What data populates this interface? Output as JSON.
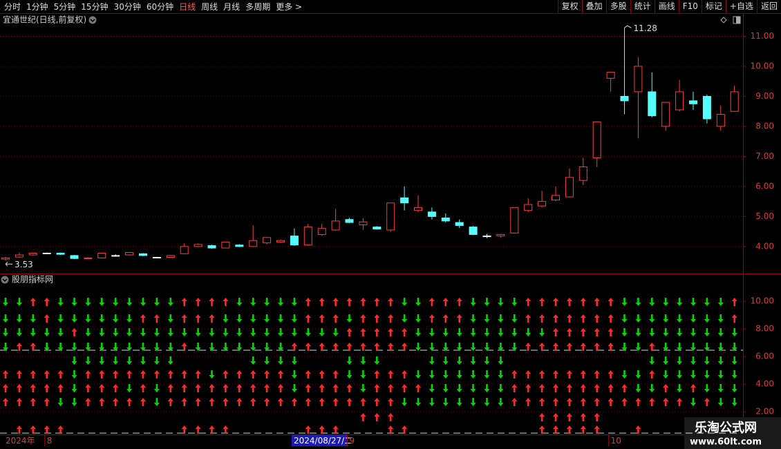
{
  "toolbar": {
    "periods": [
      "分时",
      "1分钟",
      "5分钟",
      "15分钟",
      "30分钟",
      "60分钟",
      "日线",
      "周线",
      "月线",
      "多周期",
      "更多 >"
    ],
    "tools": [
      "复权",
      "叠加",
      "多股",
      "统计",
      "画线",
      "F10",
      "标记",
      "+自选",
      "返回"
    ]
  },
  "cursor_label": "2024/08/27/二",
  "watermark": {
    "title": "乐淘公式网",
    "url": "www.60lt.com"
  },
  "chart_data": [
    {
      "type": "candlestick",
      "title": "宜通世纪(日线,前复权)",
      "categories": [
        "2024年",
        null,
        null,
        "8",
        null,
        null,
        null,
        null,
        null,
        null,
        null,
        null,
        null,
        null,
        null,
        null,
        null,
        null,
        null,
        null,
        null,
        null,
        null,
        null,
        null,
        "9",
        null,
        null,
        null,
        null,
        null,
        null,
        null,
        null,
        null,
        null,
        null,
        null,
        null,
        null,
        null,
        null,
        null,
        null,
        "10",
        null,
        null,
        null,
        null,
        null,
        null,
        null,
        null,
        null
      ],
      "open": [
        3.58,
        3.65,
        3.72,
        3.78,
        3.78,
        3.7,
        3.6,
        3.62,
        3.7,
        3.72,
        3.76,
        3.64,
        3.64,
        3.76,
        4.0,
        4.03,
        3.95,
        4.05,
        4.0,
        4.12,
        4.15,
        4.35,
        4.05,
        4.4,
        4.55,
        4.9,
        4.72,
        4.65,
        4.55,
        5.62,
        5.2,
        5.15,
        4.95,
        4.8,
        4.65,
        4.35,
        4.35,
        4.45,
        5.2,
        5.35,
        5.55,
        5.65,
        6.2,
        6.95,
        9.6,
        9.0,
        9.15,
        9.15,
        8.0,
        8.55,
        8.85,
        9.0,
        8.0,
        8.5
      ],
      "high": [
        3.65,
        3.8,
        3.8,
        3.8,
        3.8,
        3.72,
        3.64,
        3.8,
        3.74,
        3.82,
        3.78,
        3.66,
        3.72,
        4.1,
        4.1,
        4.06,
        4.15,
        4.08,
        4.7,
        4.32,
        4.22,
        4.6,
        4.75,
        4.75,
        5.25,
        4.95,
        4.95,
        4.68,
        5.45,
        6.0,
        5.7,
        5.3,
        5.1,
        4.9,
        4.68,
        4.42,
        4.42,
        5.3,
        5.6,
        5.85,
        6.0,
        6.6,
        6.95,
        8.15,
        9.8,
        11.28,
        10.3,
        9.8,
        8.8,
        9.55,
        9.15,
        9.05,
        8.7,
        9.35
      ],
      "low": [
        3.53,
        3.63,
        3.7,
        3.76,
        3.72,
        3.58,
        3.58,
        3.6,
        3.66,
        3.7,
        3.68,
        3.62,
        3.62,
        3.74,
        3.98,
        3.93,
        3.94,
        3.98,
        3.98,
        4.08,
        4.12,
        4.02,
        4.02,
        4.35,
        4.52,
        4.78,
        4.55,
        4.56,
        4.48,
        5.2,
        5.15,
        4.9,
        4.8,
        4.62,
        4.38,
        4.28,
        4.3,
        4.45,
        5.15,
        5.3,
        5.5,
        5.62,
        6.05,
        6.65,
        9.15,
        8.4,
        7.6,
        8.3,
        7.85,
        8.5,
        8.55,
        8.1,
        7.85,
        8.5
      ],
      "close": [
        3.62,
        3.72,
        3.78,
        3.78,
        3.74,
        3.6,
        3.62,
        3.78,
        3.7,
        3.8,
        3.7,
        3.64,
        3.7,
        4.0,
        4.07,
        3.95,
        4.15,
        4.0,
        4.2,
        4.3,
        4.2,
        4.05,
        4.65,
        4.6,
        4.85,
        4.8,
        4.82,
        4.58,
        5.45,
        5.45,
        5.3,
        5.0,
        4.85,
        4.7,
        4.4,
        4.35,
        4.4,
        5.3,
        5.4,
        5.5,
        5.7,
        6.3,
        6.65,
        8.15,
        9.8,
        8.85,
        10.0,
        8.35,
        8.8,
        9.15,
        8.75,
        8.25,
        8.4,
        9.15
      ],
      "up_color": "#ff3c3c",
      "down_color": "#54ffff",
      "flat_color": "#ffffff",
      "ylim": [
        3.1,
        11.7
      ],
      "yticks": [
        {
          "value": 4,
          "label": "4.00"
        },
        {
          "value": 5,
          "label": "5.00"
        },
        {
          "value": 6,
          "label": "6.00"
        },
        {
          "value": 7,
          "label": "7.00"
        },
        {
          "value": 8,
          "label": "8.00"
        },
        {
          "value": 9,
          "label": "9.00"
        },
        {
          "value": 10,
          "label": "10.00"
        },
        {
          "value": 11,
          "label": "11.00"
        }
      ],
      "grid": true
    },
    {
      "type": "signal",
      "title": "股朋指标网",
      "up_color": "#ff2a2a",
      "down_color": "#00d800",
      "ylim": [
        0.4,
        11.9
      ],
      "yticks": [
        {
          "value": 2,
          "label": "2.00"
        },
        {
          "value": 4,
          "label": "4.00"
        },
        {
          "value": 6,
          "label": "6.00"
        },
        {
          "value": 8,
          "label": "8.00"
        },
        {
          "value": 10,
          "label": "10.00"
        }
      ],
      "grid": true,
      "reference_lines": [
        6.45,
        0.45
      ],
      "rows": [
        {
          "level": 9.95,
          "signals": [
            -1,
            -1,
            1,
            1,
            -1,
            -1,
            -1,
            -1,
            -1,
            -1,
            -1,
            -1,
            -1,
            1,
            1,
            1,
            1,
            -1,
            -1,
            -1,
            -1,
            -1,
            1,
            1,
            1,
            1,
            1,
            1,
            1,
            -1,
            -1,
            1,
            1,
            1,
            -1,
            -1,
            -1,
            -1,
            1,
            1,
            1,
            1,
            1,
            1,
            1,
            -1,
            -1,
            -1,
            -1,
            -1,
            -1,
            -1,
            -1,
            1
          ]
        },
        {
          "level": 8.75,
          "signals": [
            -1,
            -1,
            -1,
            1,
            -1,
            -1,
            -1,
            -1,
            -1,
            -1,
            1,
            1,
            -1,
            1,
            1,
            1,
            -1,
            -1,
            -1,
            -1,
            -1,
            -1,
            1,
            1,
            1,
            -1,
            1,
            1,
            1,
            -1,
            -1,
            1,
            1,
            1,
            -1,
            -1,
            -1,
            -1,
            1,
            1,
            1,
            1,
            1,
            1,
            1,
            -1,
            -1,
            -1,
            -1,
            -1,
            -1,
            -1,
            -1,
            1
          ]
        },
        {
          "level": 7.75,
          "signals": [
            -1,
            -1,
            -1,
            -1,
            -1,
            1,
            -1,
            -1,
            -1,
            -1,
            -1,
            -1,
            -1,
            -1,
            -1,
            -1,
            -1,
            -1,
            -1,
            -1,
            -1,
            -1,
            -1,
            -1,
            -1,
            1,
            1,
            1,
            1,
            1,
            -1,
            -1,
            -1,
            -1,
            -1,
            -1,
            -1,
            -1,
            -1,
            -1,
            1,
            1,
            1,
            1,
            1,
            -1,
            -1,
            -1,
            -1,
            -1,
            -1,
            -1,
            -1,
            -1
          ]
        },
        {
          "level": 6.7,
          "signals": [
            -1,
            1,
            1,
            -1,
            -1,
            -1,
            -1,
            -1,
            -1,
            -1,
            -1,
            -1,
            -1,
            1,
            -1,
            -1,
            -1,
            -1,
            -1,
            -1,
            -1,
            1,
            1,
            1,
            1,
            1,
            1,
            1,
            1,
            1,
            -1,
            -1,
            -1,
            -1,
            -1,
            -1,
            -1,
            -1,
            1,
            1,
            1,
            1,
            1,
            1,
            1,
            -1,
            -1,
            1,
            -1,
            -1,
            -1,
            -1,
            -1,
            -1
          ]
        },
        {
          "level": 5.7,
          "signals": [
            null,
            null,
            null,
            null,
            null,
            -1,
            -1,
            -1,
            -1,
            -1,
            -1,
            -1,
            -1,
            null,
            null,
            null,
            null,
            null,
            -1,
            -1,
            -1,
            -1,
            null,
            null,
            null,
            -1,
            -1,
            -1,
            null,
            null,
            null,
            -1,
            -1,
            -1,
            -1,
            -1,
            -1,
            null,
            null,
            null,
            null,
            null,
            null,
            null,
            null,
            null,
            null,
            -1,
            -1,
            -1,
            -1,
            -1,
            -1,
            -1
          ]
        },
        {
          "level": 4.7,
          "signals": [
            1,
            1,
            1,
            1,
            1,
            -1,
            1,
            1,
            1,
            1,
            1,
            1,
            1,
            1,
            1,
            -1,
            1,
            1,
            1,
            1,
            1,
            -1,
            1,
            1,
            1,
            -1,
            -1,
            1,
            1,
            1,
            -1,
            -1,
            -1,
            -1,
            -1,
            -1,
            -1,
            1,
            1,
            1,
            1,
            1,
            1,
            1,
            1,
            -1,
            -1,
            1,
            -1,
            -1,
            -1,
            -1,
            -1,
            -1
          ]
        },
        {
          "level": 3.7,
          "signals": [
            1,
            1,
            1,
            1,
            1,
            -1,
            1,
            1,
            1,
            -1,
            1,
            -1,
            1,
            1,
            1,
            1,
            1,
            1,
            1,
            1,
            1,
            -1,
            1,
            1,
            1,
            1,
            -1,
            1,
            1,
            1,
            1,
            -1,
            -1,
            -1,
            -1,
            -1,
            -1,
            1,
            1,
            1,
            1,
            1,
            1,
            1,
            1,
            1,
            -1,
            -1,
            1,
            -1,
            1,
            -1,
            -1,
            -1
          ]
        },
        {
          "level": 2.7,
          "signals": [
            1,
            1,
            1,
            1,
            -1,
            -1,
            1,
            1,
            1,
            1,
            1,
            -1,
            1,
            1,
            1,
            1,
            1,
            1,
            1,
            1,
            1,
            1,
            1,
            1,
            1,
            1,
            1,
            1,
            1,
            -1,
            -1,
            -1,
            -1,
            -1,
            -1,
            -1,
            -1,
            1,
            1,
            1,
            1,
            1,
            1,
            1,
            1,
            1,
            1,
            1,
            1,
            1,
            -1,
            1,
            -1,
            -1
          ]
        },
        {
          "level": 1.6,
          "signals": [
            null,
            null,
            null,
            null,
            null,
            null,
            null,
            null,
            null,
            null,
            null,
            null,
            null,
            null,
            null,
            null,
            null,
            null,
            null,
            null,
            null,
            null,
            null,
            null,
            null,
            null,
            1,
            1,
            1,
            null,
            null,
            null,
            null,
            null,
            null,
            null,
            null,
            null,
            null,
            1,
            1,
            1,
            1,
            1,
            null,
            null,
            null,
            null,
            null,
            null,
            null,
            null,
            null,
            null
          ]
        },
        {
          "level": 0.7,
          "signals": [
            null,
            1,
            1,
            1,
            1,
            null,
            null,
            null,
            null,
            null,
            null,
            null,
            null,
            1,
            1,
            1,
            1,
            null,
            null,
            null,
            null,
            null,
            1,
            1,
            1,
            null,
            null,
            null,
            1,
            1,
            null,
            null,
            null,
            null,
            null,
            null,
            null,
            null,
            null,
            1,
            1,
            1,
            1,
            1,
            null,
            null,
            1,
            null,
            null,
            null,
            null,
            null,
            null,
            null
          ]
        }
      ]
    }
  ]
}
